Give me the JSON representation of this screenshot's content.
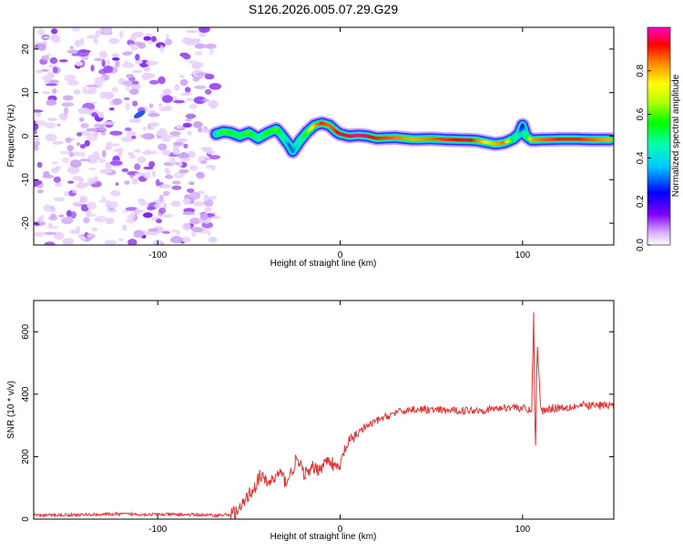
{
  "chart_data": [
    {
      "type": "heatmap",
      "title": "S126.2026.005.07.29.G29",
      "xlabel": "Height of straight line (km)",
      "ylabel": "Frequency (Hz)",
      "xlim": [
        -168,
        150
      ],
      "ylim": [
        -25,
        25
      ],
      "x_ticks": [
        -100,
        0,
        100
      ],
      "y_ticks": [
        -20,
        -10,
        0,
        10,
        20
      ],
      "noise_region_x": [
        -168,
        -68
      ],
      "ridge": {
        "x": [
          -68,
          -64,
          -60,
          -55,
          -50,
          -45,
          -40,
          -35,
          -32,
          -28,
          -26,
          -22,
          -18,
          -14,
          -10,
          -6,
          -2,
          0,
          5,
          10,
          15,
          20,
          30,
          40,
          50,
          60,
          70,
          75,
          80,
          85,
          90,
          95,
          98,
          100,
          102,
          105,
          110,
          120,
          130,
          140,
          148
        ],
        "f": [
          0.5,
          1.0,
          0.8,
          0.0,
          0.8,
          -0.5,
          0.7,
          1.6,
          0.2,
          -2.0,
          -3.5,
          -1.0,
          1.0,
          2.5,
          3.0,
          2.5,
          1.0,
          0.5,
          0.0,
          0.2,
          0.0,
          -0.5,
          -0.3,
          -0.7,
          -0.6,
          -0.8,
          -0.9,
          -1.0,
          -1.4,
          -1.8,
          -1.5,
          -0.6,
          0.5,
          2.5,
          0.0,
          -0.9,
          -0.8,
          -0.7,
          -0.7,
          -0.8,
          -0.8
        ],
        "amp": [
          0.35,
          0.6,
          0.55,
          0.5,
          0.6,
          0.45,
          0.55,
          0.6,
          0.5,
          0.3,
          0.3,
          0.45,
          0.6,
          0.8,
          0.9,
          0.85,
          0.9,
          0.95,
          0.95,
          0.98,
          0.95,
          0.9,
          0.85,
          0.8,
          0.85,
          0.9,
          0.95,
          0.85,
          0.75,
          0.8,
          0.85,
          0.5,
          0.4,
          0.2,
          0.5,
          0.8,
          0.85,
          0.9,
          0.9,
          0.85,
          0.8
        ]
      },
      "colorbar": {
        "label": "Normalized spectral amplitude",
        "range": [
          0,
          1
        ],
        "ticks": [
          "0.0",
          "0.2",
          "0.4",
          "0.6",
          "0.8"
        ]
      }
    },
    {
      "type": "line",
      "xlabel": "Height of straight line (km)",
      "ylabel": "SNR (10 * v/v)",
      "xlim": [
        -168,
        150
      ],
      "ylim": [
        0,
        700
      ],
      "x_ticks": [
        -100,
        0,
        100
      ],
      "y_ticks": [
        0,
        200,
        400,
        600
      ],
      "color": "#e83030",
      "series": [
        {
          "name": "SNR",
          "x": [
            -168,
            -140,
            -120,
            -100,
            -80,
            -68,
            -60,
            -55,
            -52,
            -50,
            -47,
            -44,
            -40,
            -36,
            -33,
            -30,
            -27,
            -24,
            -20,
            -17,
            -15,
            -12,
            -9,
            -6,
            -3,
            0,
            2,
            5,
            10,
            20,
            30,
            40,
            60,
            80,
            95,
            100,
            103,
            105,
            106,
            107,
            108,
            110,
            115,
            130,
            150
          ],
          "y": [
            12,
            14,
            16,
            15,
            14,
            12,
            15,
            30,
            60,
            80,
            100,
            140,
            115,
            130,
            150,
            120,
            145,
            190,
            150,
            145,
            165,
            160,
            175,
            195,
            165,
            165,
            215,
            245,
            280,
            315,
            340,
            352,
            347,
            350,
            360,
            355,
            345,
            355,
            650,
            200,
            560,
            345,
            355,
            362,
            365
          ]
        }
      ],
      "title": ""
    }
  ]
}
